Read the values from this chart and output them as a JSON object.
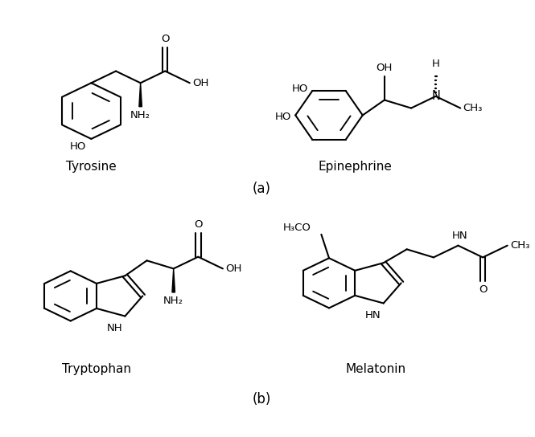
{
  "background_color": "#ffffff",
  "text_color": "#000000",
  "line_color": "#000000",
  "line_width": 1.5,
  "label_a": "(a)",
  "label_b": "(b)",
  "label_tyrosine": "Tyrosine",
  "label_epinephrine": "Epinephrine",
  "label_tryptophan": "Tryptophan",
  "label_melatonin": "Melatonin",
  "font_size_label": 11,
  "font_size_chem": 9.5
}
